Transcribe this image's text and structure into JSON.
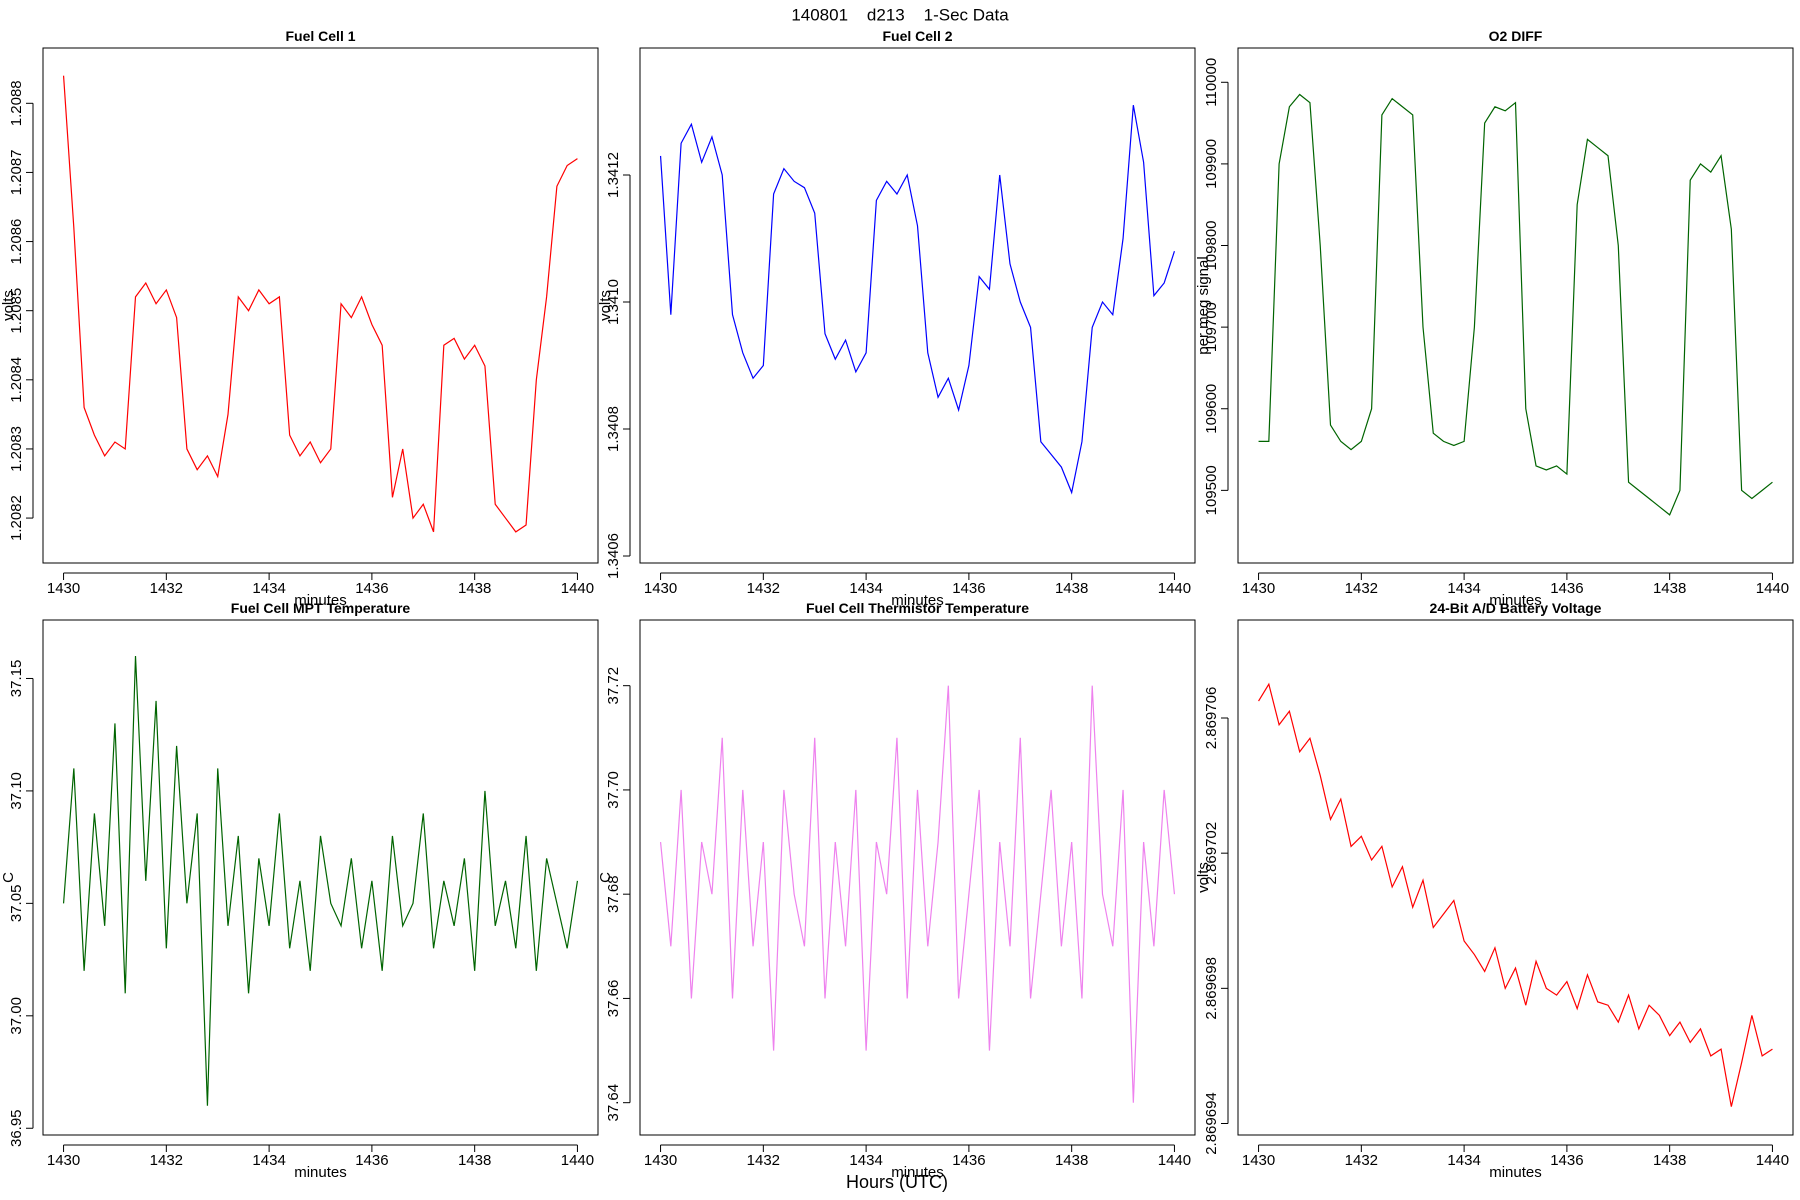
{
  "title": "140801    d213    1-Sec Data",
  "xlabel": "Hours (UTC)",
  "chart_data": [
    {
      "type": "line",
      "title": "Fuel Cell 1",
      "xlabel": "minutes",
      "ylabel": "volts",
      "color": "#ff0000",
      "x": [
        1430.0,
        1430.2,
        1430.4,
        1430.6,
        1430.8,
        1431.0,
        1431.2,
        1431.4,
        1431.6,
        1431.8,
        1432.0,
        1432.2,
        1432.4,
        1432.6,
        1432.8,
        1433.0,
        1433.2,
        1433.4,
        1433.6,
        1433.8,
        1434.0,
        1434.2,
        1434.4,
        1434.6,
        1434.8,
        1435.0,
        1435.2,
        1435.4,
        1435.6,
        1435.8,
        1436.0,
        1436.2,
        1436.4,
        1436.6,
        1436.8,
        1437.0,
        1437.2,
        1437.4,
        1437.6,
        1437.8,
        1438.0,
        1438.2,
        1438.4,
        1438.6,
        1438.8,
        1439.0,
        1439.2,
        1439.4,
        1439.6,
        1439.8,
        1440.0
      ],
      "values": [
        1.20884,
        1.20862,
        1.20836,
        1.20832,
        1.20829,
        1.20831,
        1.2083,
        1.20852,
        1.20854,
        1.20851,
        1.20853,
        1.20849,
        1.2083,
        1.20827,
        1.20829,
        1.20826,
        1.20835,
        1.20852,
        1.2085,
        1.20853,
        1.20851,
        1.20852,
        1.20832,
        1.20829,
        1.20831,
        1.20828,
        1.2083,
        1.20851,
        1.20849,
        1.20852,
        1.20848,
        1.20845,
        1.20823,
        1.2083,
        1.2082,
        1.20822,
        1.20818,
        1.20845,
        1.20846,
        1.20843,
        1.20845,
        1.20842,
        1.20822,
        1.2082,
        1.20818,
        1.20819,
        1.2084,
        1.20852,
        1.20868,
        1.20871,
        1.20872
      ],
      "xlim": [
        1429.6,
        1440.4
      ],
      "xticks": [
        1430,
        1432,
        1434,
        1436,
        1438,
        1440
      ],
      "ylim": [
        1.208135,
        1.20888
      ],
      "yticks": [
        1.2082,
        1.2083,
        1.2084,
        1.2085,
        1.2086,
        1.2087,
        1.2088
      ]
    },
    {
      "type": "line",
      "title": "Fuel Cell 2",
      "xlabel": "minutes",
      "ylabel": "volts",
      "color": "#0000ff",
      "x": [
        1430.0,
        1430.2,
        1430.4,
        1430.6,
        1430.8,
        1431.0,
        1431.2,
        1431.4,
        1431.6,
        1431.8,
        1432.0,
        1432.2,
        1432.4,
        1432.6,
        1432.8,
        1433.0,
        1433.2,
        1433.4,
        1433.6,
        1433.8,
        1434.0,
        1434.2,
        1434.4,
        1434.6,
        1434.8,
        1435.0,
        1435.2,
        1435.4,
        1435.6,
        1435.8,
        1436.0,
        1436.2,
        1436.4,
        1436.6,
        1436.8,
        1437.0,
        1437.2,
        1437.4,
        1437.6,
        1437.8,
        1438.0,
        1438.2,
        1438.4,
        1438.6,
        1438.8,
        1439.0,
        1439.2,
        1439.4,
        1439.6,
        1439.8,
        1440.0
      ],
      "values": [
        1.34123,
        1.34098,
        1.34125,
        1.34128,
        1.34122,
        1.34126,
        1.3412,
        1.34098,
        1.34092,
        1.34088,
        1.3409,
        1.34117,
        1.34121,
        1.34119,
        1.34118,
        1.34114,
        1.34095,
        1.34091,
        1.34094,
        1.34089,
        1.34092,
        1.34116,
        1.34119,
        1.34117,
        1.3412,
        1.34112,
        1.34092,
        1.34085,
        1.34088,
        1.34083,
        1.3409,
        1.34104,
        1.34102,
        1.3412,
        1.34106,
        1.341,
        1.34096,
        1.34078,
        1.34076,
        1.34074,
        1.3407,
        1.34078,
        1.34096,
        1.341,
        1.34098,
        1.3411,
        1.34131,
        1.34122,
        1.34101,
        1.34103,
        1.34108
      ],
      "xlim": [
        1429.6,
        1440.4
      ],
      "xticks": [
        1430,
        1432,
        1434,
        1436,
        1438,
        1440
      ],
      "ylim": [
        1.340589,
        1.3414
      ],
      "yticks": [
        1.3406,
        1.3408,
        {
          "value": 1.341,
          "label": "1.3410"
        },
        1.3412
      ]
    },
    {
      "type": "line",
      "title": "O2 DIFF",
      "xlabel": "minutes",
      "ylabel": "per meg signal",
      "color": "#006400",
      "x": [
        1430.0,
        1430.2,
        1430.4,
        1430.6,
        1430.8,
        1431.0,
        1431.2,
        1431.4,
        1431.6,
        1431.8,
        1432.0,
        1432.2,
        1432.4,
        1432.6,
        1432.8,
        1433.0,
        1433.2,
        1433.4,
        1433.6,
        1433.8,
        1434.0,
        1434.2,
        1434.4,
        1434.6,
        1434.8,
        1435.0,
        1435.2,
        1435.4,
        1435.6,
        1435.8,
        1436.0,
        1436.2,
        1436.4,
        1436.6,
        1436.8,
        1437.0,
        1437.2,
        1437.4,
        1437.6,
        1437.8,
        1438.0,
        1438.2,
        1438.4,
        1438.6,
        1438.8,
        1439.0,
        1439.2,
        1439.4,
        1439.6,
        1439.8,
        1440.0
      ],
      "values": [
        109560,
        109560,
        109900,
        109970,
        109985,
        109975,
        109800,
        109580,
        109560,
        109550,
        109560,
        109600,
        109960,
        109980,
        109970,
        109960,
        109700,
        109570,
        109560,
        109555,
        109560,
        109700,
        109950,
        109970,
        109965,
        109975,
        109600,
        109530,
        109525,
        109530,
        109520,
        109850,
        109930,
        109920,
        109910,
        109800,
        109510,
        109500,
        109490,
        109480,
        109470,
        109500,
        109880,
        109900,
        109890,
        109910,
        109820,
        109500,
        109490,
        109500,
        109510
      ],
      "xlim": [
        1429.6,
        1440.4
      ],
      "xticks": [
        1430,
        1432,
        1434,
        1436,
        1438,
        1440
      ],
      "ylim": [
        109411,
        110042
      ],
      "yticks": [
        109500,
        109600,
        109700,
        109800,
        109900,
        110000
      ]
    },
    {
      "type": "line",
      "title": "Fuel Cell MPT Temperature",
      "xlabel": "minutes",
      "ylabel": "C",
      "color": "#006400",
      "x": [
        1430.0,
        1430.2,
        1430.4,
        1430.6,
        1430.8,
        1431.0,
        1431.2,
        1431.4,
        1431.6,
        1431.8,
        1432.0,
        1432.2,
        1432.4,
        1432.6,
        1432.8,
        1433.0,
        1433.2,
        1433.4,
        1433.6,
        1433.8,
        1434.0,
        1434.2,
        1434.4,
        1434.6,
        1434.8,
        1435.0,
        1435.2,
        1435.4,
        1435.6,
        1435.8,
        1436.0,
        1436.2,
        1436.4,
        1436.6,
        1436.8,
        1437.0,
        1437.2,
        1437.4,
        1437.6,
        1437.8,
        1438.0,
        1438.2,
        1438.4,
        1438.6,
        1438.8,
        1439.0,
        1439.2,
        1439.4,
        1439.6,
        1439.8,
        1440.0
      ],
      "values": [
        37.05,
        37.11,
        37.02,
        37.09,
        37.04,
        37.13,
        37.01,
        37.16,
        37.06,
        37.14,
        37.03,
        37.12,
        37.05,
        37.09,
        36.96,
        37.11,
        37.04,
        37.08,
        37.01,
        37.07,
        37.04,
        37.09,
        37.03,
        37.06,
        37.02,
        37.08,
        37.05,
        37.04,
        37.07,
        37.03,
        37.06,
        37.02,
        37.08,
        37.04,
        37.05,
        37.09,
        37.03,
        37.06,
        37.04,
        37.07,
        37.02,
        37.1,
        37.04,
        37.06,
        37.03,
        37.08,
        37.02,
        37.07,
        37.05,
        37.03,
        37.06
      ],
      "xlim": [
        1429.6,
        1440.4
      ],
      "xticks": [
        1430,
        1432,
        1434,
        1436,
        1438,
        1440
      ],
      "ylim": [
        36.947,
        37.176
      ],
      "yticks": [
        36.95,
        {
          "value": 37,
          "label": "37.00"
        },
        37.05,
        {
          "value": 37.1,
          "label": "37.10"
        },
        37.15
      ]
    },
    {
      "type": "line",
      "title": "Fuel Cell Thermistor Temperature",
      "xlabel": "minutes",
      "ylabel": "C",
      "color": "#ee82ee",
      "x": [
        1430.0,
        1430.2,
        1430.4,
        1430.6,
        1430.8,
        1431.0,
        1431.2,
        1431.4,
        1431.6,
        1431.8,
        1432.0,
        1432.2,
        1432.4,
        1432.6,
        1432.8,
        1433.0,
        1433.2,
        1433.4,
        1433.6,
        1433.8,
        1434.0,
        1434.2,
        1434.4,
        1434.6,
        1434.8,
        1435.0,
        1435.2,
        1435.4,
        1435.6,
        1435.8,
        1436.0,
        1436.2,
        1436.4,
        1436.6,
        1436.8,
        1437.0,
        1437.2,
        1437.4,
        1437.6,
        1437.8,
        1438.0,
        1438.2,
        1438.4,
        1438.6,
        1438.8,
        1439.0,
        1439.2,
        1439.4,
        1439.6,
        1439.8,
        1440.0
      ],
      "values": [
        37.69,
        37.67,
        37.7,
        37.66,
        37.69,
        37.68,
        37.71,
        37.66,
        37.7,
        37.67,
        37.69,
        37.65,
        37.7,
        37.68,
        37.67,
        37.71,
        37.66,
        37.69,
        37.67,
        37.7,
        37.65,
        37.69,
        37.68,
        37.71,
        37.66,
        37.7,
        37.67,
        37.69,
        37.72,
        37.66,
        37.68,
        37.7,
        37.65,
        37.69,
        37.67,
        37.71,
        37.66,
        37.68,
        37.7,
        37.67,
        37.69,
        37.66,
        37.72,
        37.68,
        37.67,
        37.7,
        37.64,
        37.69,
        37.67,
        37.7,
        37.68
      ],
      "xlim": [
        1429.6,
        1440.4
      ],
      "xticks": [
        1430,
        1432,
        1434,
        1436,
        1438,
        1440
      ],
      "ylim": [
        37.6338,
        37.7326
      ],
      "yticks": [
        37.64,
        37.66,
        37.68,
        {
          "value": 37.7,
          "label": "37.70"
        },
        37.72
      ]
    },
    {
      "type": "line",
      "title": "24-Bit A/D Battery Voltage",
      "xlabel": "minutes",
      "ylabel": "volts",
      "color": "#ff0000",
      "x": [
        1430.0,
        1430.2,
        1430.4,
        1430.6,
        1430.8,
        1431.0,
        1431.2,
        1431.4,
        1431.6,
        1431.8,
        1432.0,
        1432.2,
        1432.4,
        1432.6,
        1432.8,
        1433.0,
        1433.2,
        1433.4,
        1433.6,
        1433.8,
        1434.0,
        1434.2,
        1434.4,
        1434.6,
        1434.8,
        1435.0,
        1435.2,
        1435.4,
        1435.6,
        1435.8,
        1436.0,
        1436.2,
        1436.4,
        1436.6,
        1436.8,
        1437.0,
        1437.2,
        1437.4,
        1437.6,
        1437.8,
        1438.0,
        1438.2,
        1438.4,
        1438.6,
        1438.8,
        1439.0,
        1439.2,
        1439.4,
        1439.6,
        1439.8,
        1440.0
      ],
      "values": [
        2.8697065,
        2.869707,
        2.8697058,
        2.8697062,
        2.869705,
        2.8697054,
        2.8697043,
        2.869703,
        2.8697036,
        2.8697022,
        2.8697025,
        2.8697018,
        2.8697022,
        2.869701,
        2.8697016,
        2.8697004,
        2.8697012,
        2.8696998,
        2.8697002,
        2.8697006,
        2.8696994,
        2.869699,
        2.8696985,
        2.8696992,
        2.869698,
        2.8696986,
        2.8696975,
        2.8696988,
        2.869698,
        2.8696978,
        2.8696982,
        2.8696974,
        2.8696984,
        2.8696976,
        2.8696975,
        2.869697,
        2.8696978,
        2.8696968,
        2.8696975,
        2.8696972,
        2.8696966,
        2.869697,
        2.8696964,
        2.8696968,
        2.869696,
        2.8696962,
        2.8696945,
        2.8696958,
        2.8696972,
        2.869696,
        2.8696962
      ],
      "xlim": [
        1429.6,
        1440.4
      ],
      "xticks": [
        1430,
        1432,
        1434,
        1436,
        1438,
        1440
      ],
      "ylim": [
        2.86969366,
        2.8697089
      ],
      "yticks": [
        2.869694,
        2.869698,
        2.869702,
        2.869706
      ]
    }
  ]
}
